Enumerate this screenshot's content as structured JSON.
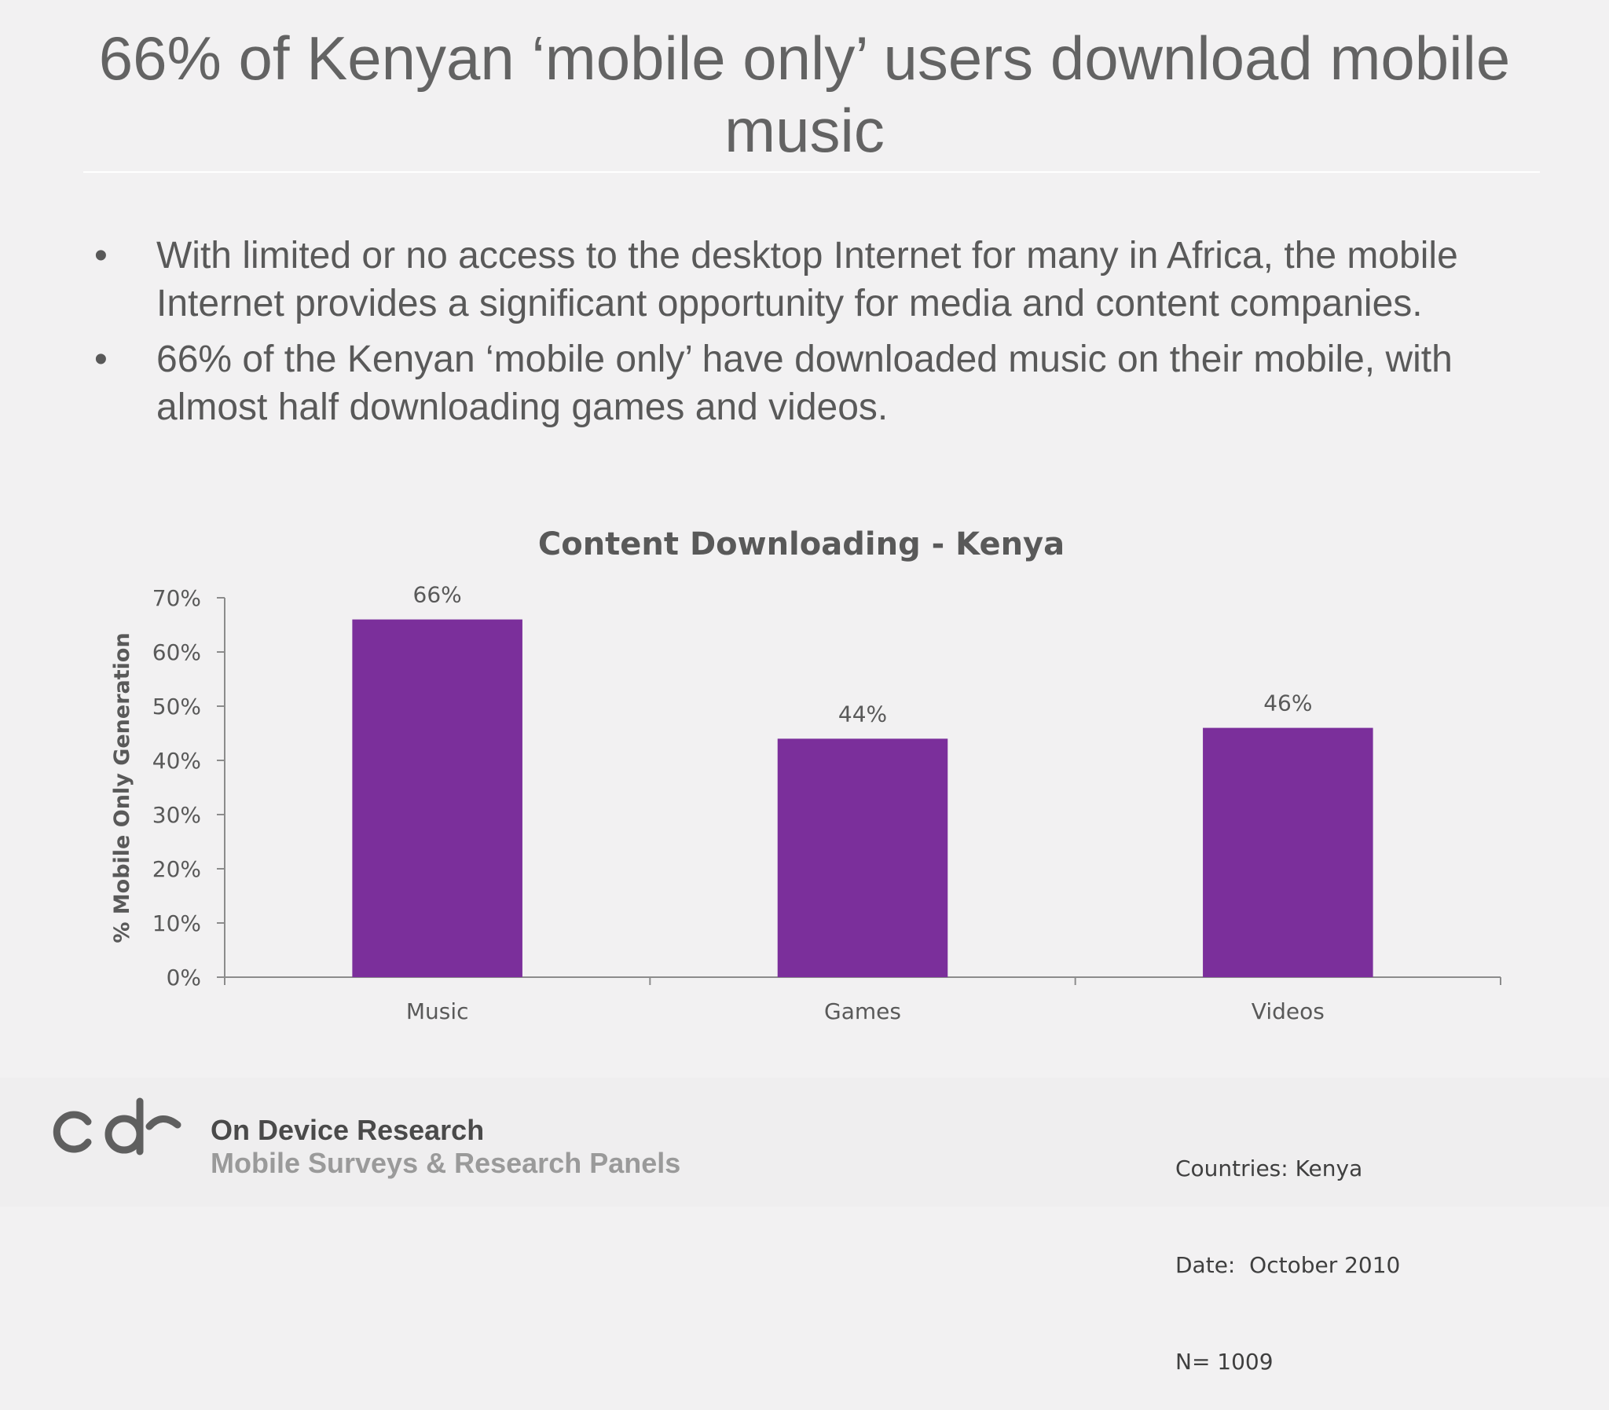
{
  "slide": {
    "title": "66% of Kenyan ‘mobile only’ users download mobile music",
    "bullet_char": "•",
    "bullets": [
      "With limited or no access to the desktop Internet for many in Africa, the mobile Internet provides a significant opportunity for media and content companies.",
      "66% of the Kenyan ‘mobile only’ have downloaded music on their mobile, with almost half downloading games and videos."
    ]
  },
  "chart_data": {
    "type": "bar",
    "title": "Content Downloading - Kenya",
    "xlabel": "",
    "ylabel": "% Mobile Only Generation",
    "categories": [
      "Music",
      "Games",
      "Videos"
    ],
    "values": [
      66,
      44,
      46
    ],
    "data_labels": [
      "66%",
      "44%",
      "46%"
    ],
    "ylim": [
      0,
      70
    ],
    "yticks": [
      0,
      10,
      20,
      30,
      40,
      50,
      60,
      70
    ],
    "ytick_labels": [
      "0%",
      "10%",
      "20%",
      "30%",
      "40%",
      "50%",
      "60%",
      "70%"
    ],
    "bar_color": "#7b2f9b",
    "grid": false,
    "legend": "none"
  },
  "footer": {
    "logo_name": "On Device Research",
    "logo_tagline": "Mobile Surveys & Research Panels",
    "logo_mark_icon": "cdr-logo-icon",
    "meta_lines": [
      "Countries: Kenya",
      "Date:  October 2010",
      "N= 1009"
    ]
  }
}
